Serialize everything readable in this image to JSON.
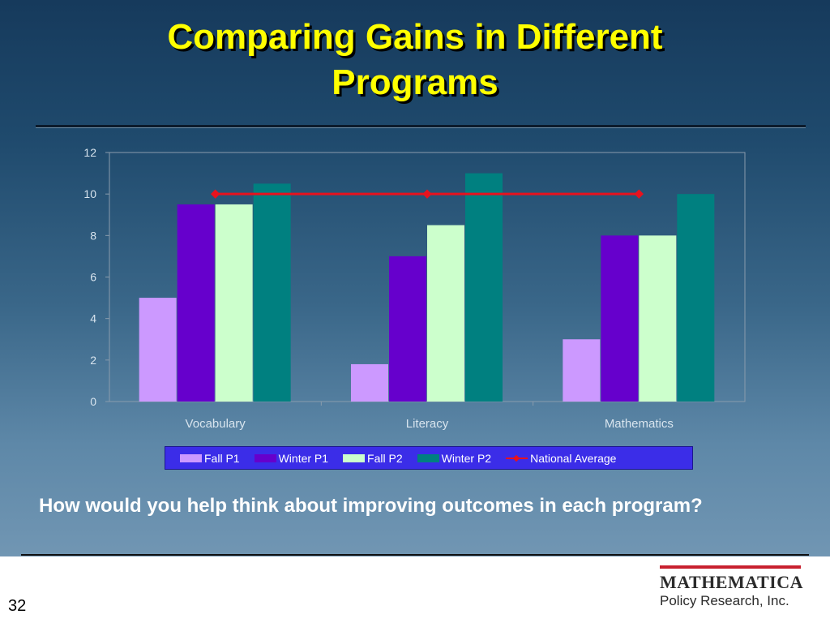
{
  "slide": {
    "title_line1": "Comparing Gains in Different",
    "title_line2": "Programs",
    "question": "How would you help think about improving outcomes in each program?",
    "page_number": "32",
    "logo_main": "MATHEMATICA",
    "logo_sub": "Policy Research, Inc."
  },
  "chart_data": {
    "type": "bar",
    "categories": [
      "Vocabulary",
      "Literacy",
      "Mathematics"
    ],
    "series": [
      {
        "name": "Fall P1",
        "values": [
          5,
          1.8,
          3
        ],
        "color": "#cc99ff"
      },
      {
        "name": "Winter P1",
        "values": [
          9.5,
          7,
          8
        ],
        "color": "#6600cc"
      },
      {
        "name": "Fall P2",
        "values": [
          9.5,
          8.5,
          8
        ],
        "color": "#ccffcc"
      },
      {
        "name": "Winter P2",
        "values": [
          10.5,
          11,
          10
        ],
        "color": "#008080"
      }
    ],
    "line_series": {
      "name": "National Average",
      "values": [
        10,
        10,
        10
      ],
      "color": "#e8121e"
    },
    "ylim": [
      0,
      12
    ],
    "yticks": [
      "0",
      "2",
      "4",
      "6",
      "8",
      "10",
      "12"
    ],
    "grid": false,
    "legend_position": "bottom",
    "colors": {
      "axis": "#8a9cad",
      "tick_text": "#d8e4ee"
    }
  }
}
